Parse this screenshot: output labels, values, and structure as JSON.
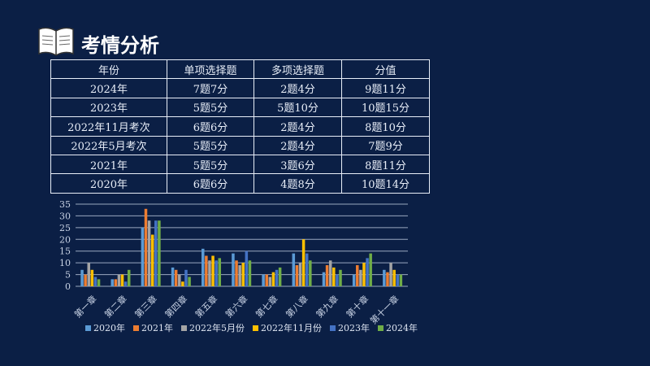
{
  "title": "考情分析",
  "table": {
    "headers": [
      "年份",
      "单项选择题",
      "多项选择题",
      "分值"
    ],
    "rows": [
      [
        "2024年",
        "7题7分",
        "2题4分",
        "9题11分"
      ],
      [
        "2023年",
        "5题5分",
        "5题10分",
        "10题15分"
      ],
      [
        "2022年11月考次",
        "6题6分",
        "2题4分",
        "8题10分"
      ],
      [
        "2022年5月考次",
        "5题5分",
        "2题4分",
        "7题9分"
      ],
      [
        "2021年",
        "5题5分",
        "3题6分",
        "8题11分"
      ],
      [
        "2020年",
        "6题6分",
        "4题8分",
        "10题14分"
      ]
    ]
  },
  "chart_data": {
    "type": "bar",
    "categories": [
      "第一章",
      "第二章",
      "第三章",
      "第四章",
      "第五章",
      "第六章",
      "第七章",
      "第八章",
      "第九章",
      "第十章",
      "第十一章"
    ],
    "ylim": [
      0,
      35
    ],
    "yticks": [
      0,
      5,
      10,
      15,
      20,
      25,
      30,
      35
    ],
    "grid": true,
    "legend_position": "bottom",
    "series": [
      {
        "name": "2020年",
        "color": "#5b9bd5",
        "values": [
          7,
          3,
          25,
          8,
          16,
          14,
          5,
          14,
          6,
          5,
          7
        ]
      },
      {
        "name": "2021年",
        "color": "#ed7d31",
        "values": [
          5,
          3,
          33,
          7,
          13,
          11,
          5,
          9,
          9,
          9,
          6
        ]
      },
      {
        "name": "2022年5月份",
        "color": "#a5a5a5",
        "values": [
          10,
          5,
          28,
          5,
          11,
          9,
          4,
          10,
          11,
          7,
          10
        ]
      },
      {
        "name": "2022年11月份",
        "color": "#ffc000",
        "values": [
          7,
          5,
          22,
          2,
          13,
          10,
          6,
          20,
          8,
          10,
          7
        ]
      },
      {
        "name": "2023年",
        "color": "#4472c4",
        "values": [
          4,
          2,
          28,
          7,
          11,
          15,
          7,
          14,
          5,
          12,
          5
        ]
      },
      {
        "name": "2024年",
        "color": "#70ad47",
        "values": [
          3,
          7,
          28,
          4,
          12,
          11,
          8,
          11,
          7,
          14,
          5
        ]
      }
    ]
  }
}
